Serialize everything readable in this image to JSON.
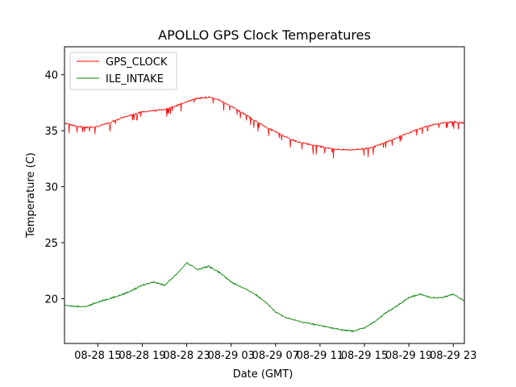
{
  "chart_data": {
    "type": "line",
    "title": "APOLLO GPS Clock Temperatures",
    "xlabel": "Date (GMT)",
    "ylabel": "Temperature (C)",
    "x_ticks": [
      {
        "label": "08-28 15",
        "hours": 15
      },
      {
        "label": "08-28 19",
        "hours": 19
      },
      {
        "label": "08-28 23",
        "hours": 23
      },
      {
        "label": "08-29 03",
        "hours": 27
      },
      {
        "label": "08-29 07",
        "hours": 31
      },
      {
        "label": "08-29 11",
        "hours": 35
      },
      {
        "label": "08-29 15",
        "hours": 39
      },
      {
        "label": "08-29 19",
        "hours": 43
      },
      {
        "label": "08-29 23",
        "hours": 47
      }
    ],
    "xlim_hours": [
      12.0,
      48.0
    ],
    "ylim": [
      16.0,
      42.5
    ],
    "y_ticks": [
      20,
      25,
      30,
      35,
      40
    ],
    "grid": false,
    "legend_position": "top-left",
    "series": [
      {
        "name": "GPS_CLOCK",
        "color": "#ff0000",
        "hours": [
          12.0,
          13.0,
          14.0,
          15.0,
          16.0,
          17.0,
          18.0,
          19.0,
          20.0,
          21.0,
          22.0,
          23.0,
          24.0,
          25.0,
          26.0,
          27.0,
          28.0,
          29.0,
          30.0,
          31.0,
          32.0,
          33.0,
          34.0,
          35.0,
          36.0,
          37.0,
          38.0,
          39.0,
          40.0,
          41.0,
          42.0,
          43.0,
          44.0,
          45.0,
          46.0,
          47.0,
          48.0
        ],
        "values": [
          35.7,
          35.4,
          35.3,
          35.4,
          35.7,
          36.1,
          36.4,
          36.7,
          36.8,
          36.9,
          37.2,
          37.6,
          37.9,
          38.0,
          37.7,
          37.2,
          36.6,
          36.0,
          35.4,
          34.9,
          34.4,
          34.0,
          33.8,
          33.6,
          33.4,
          33.3,
          33.3,
          33.4,
          33.6,
          34.0,
          34.4,
          34.8,
          35.2,
          35.5,
          35.7,
          35.8,
          35.7
        ]
      },
      {
        "name": "ILE_INTAKE",
        "color": "#008000",
        "hours": [
          12.0,
          13.0,
          14.0,
          15.0,
          16.0,
          17.0,
          18.0,
          19.0,
          20.0,
          21.0,
          22.0,
          23.0,
          24.0,
          25.0,
          26.0,
          27.0,
          28.0,
          29.0,
          30.0,
          31.0,
          32.0,
          33.0,
          34.0,
          35.0,
          36.0,
          37.0,
          38.0,
          39.0,
          40.0,
          41.0,
          42.0,
          43.0,
          44.0,
          45.0,
          46.0,
          47.0,
          48.0
        ],
        "values": [
          19.4,
          19.3,
          19.3,
          19.7,
          20.0,
          20.3,
          20.7,
          21.2,
          21.5,
          21.2,
          22.1,
          23.2,
          22.6,
          22.9,
          22.3,
          21.5,
          21.0,
          20.5,
          19.8,
          18.8,
          18.3,
          18.0,
          17.8,
          17.6,
          17.4,
          17.2,
          17.1,
          17.4,
          18.0,
          18.8,
          19.4,
          20.1,
          20.4,
          20.1,
          20.1,
          20.4,
          19.8
        ]
      }
    ]
  }
}
